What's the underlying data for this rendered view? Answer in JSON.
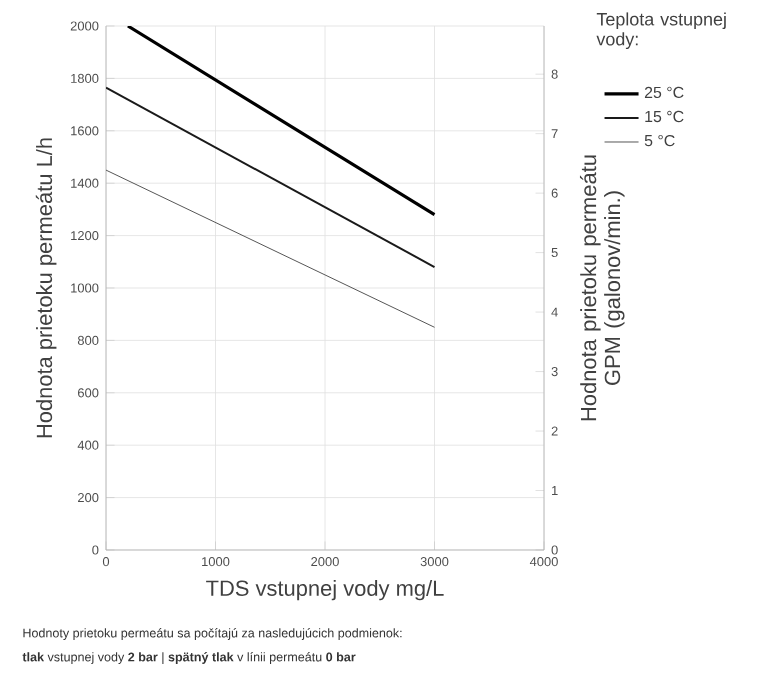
{
  "chart_data": {
    "type": "line",
    "xlabel": "TDS vstupnej vody mg/L",
    "ylabel": "Hodnota prietoku permeátu L/h",
    "y2label": "Hodnota prietoku permeátu GPM (galonov/min.)",
    "legend_title": "Teplota vstupnej vody:",
    "xlim": [
      0,
      4000
    ],
    "xticks": [
      0,
      1000,
      2000,
      3000,
      4000
    ],
    "ylim": [
      0,
      2000
    ],
    "yticks": [
      0,
      200,
      400,
      600,
      800,
      1000,
      1200,
      1400,
      1600,
      1800,
      2000
    ],
    "y2lim": [
      0,
      8.81
    ],
    "y2ticks": [
      0,
      1,
      2,
      3,
      4,
      5,
      6,
      7,
      8
    ],
    "grid": true,
    "legend": "top right",
    "marker": "none",
    "line_style": "solid",
    "series": [
      {
        "name": "25 °C",
        "color": "#000000",
        "x": [
          200,
          3000
        ],
        "values": [
          2000,
          1280
        ]
      },
      {
        "name": "15 °C",
        "color": "#1a1a1a",
        "x": [
          0,
          3000
        ],
        "values": [
          1765,
          1080
        ]
      },
      {
        "name": "5 °C",
        "color": "#555555",
        "x": [
          0,
          3000
        ],
        "values": [
          1450,
          850
        ]
      }
    ],
    "annotations": [
      "Hodnoty prietoku permeátu sa počítajú za nasledujúcich podmienok:",
      "**tlak** vstupnej vody **2 bar** | **spätný tlak** v línii permeátu **0 bar**"
    ]
  }
}
